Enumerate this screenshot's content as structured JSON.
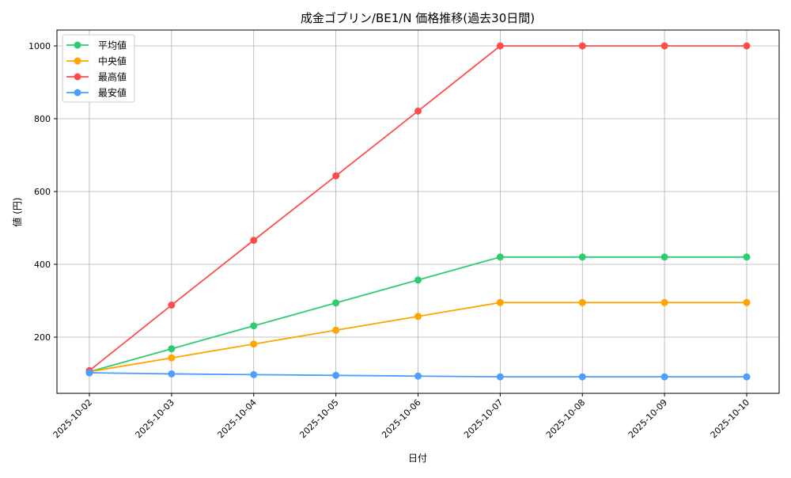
{
  "chart_data": {
    "type": "line",
    "title": "成金ゴブリン/BE1/N 価格推移(過去30日間)",
    "xlabel": "日付",
    "ylabel": "値 (円)",
    "x": [
      "2025-10-02",
      "2025-10-03",
      "2025-10-04",
      "2025-10-05",
      "2025-10-06",
      "2025-10-07",
      "2025-10-08",
      "2025-10-09",
      "2025-10-10"
    ],
    "yticks": [
      200,
      400,
      600,
      800,
      1000
    ],
    "ylim": [
      45,
      1045
    ],
    "grid": true,
    "legend_position": "top-left",
    "series": [
      {
        "name": "平均値",
        "color": "#2ecc71",
        "values": [
          105,
          168,
          231,
          294,
          357,
          420,
          420,
          420,
          420
        ]
      },
      {
        "name": "中央値",
        "color": "#ffa500",
        "values": [
          105,
          143,
          181,
          219,
          257,
          295,
          295,
          295,
          295
        ]
      },
      {
        "name": "最高値",
        "color": "#ff4d4d",
        "values": [
          108,
          288,
          466,
          643,
          821,
          1000,
          1000,
          1000,
          1000
        ]
      },
      {
        "name": "最安値",
        "color": "#4d9fff",
        "values": [
          102,
          99,
          97,
          95,
          93,
          91,
          91,
          91,
          91
        ]
      }
    ]
  }
}
